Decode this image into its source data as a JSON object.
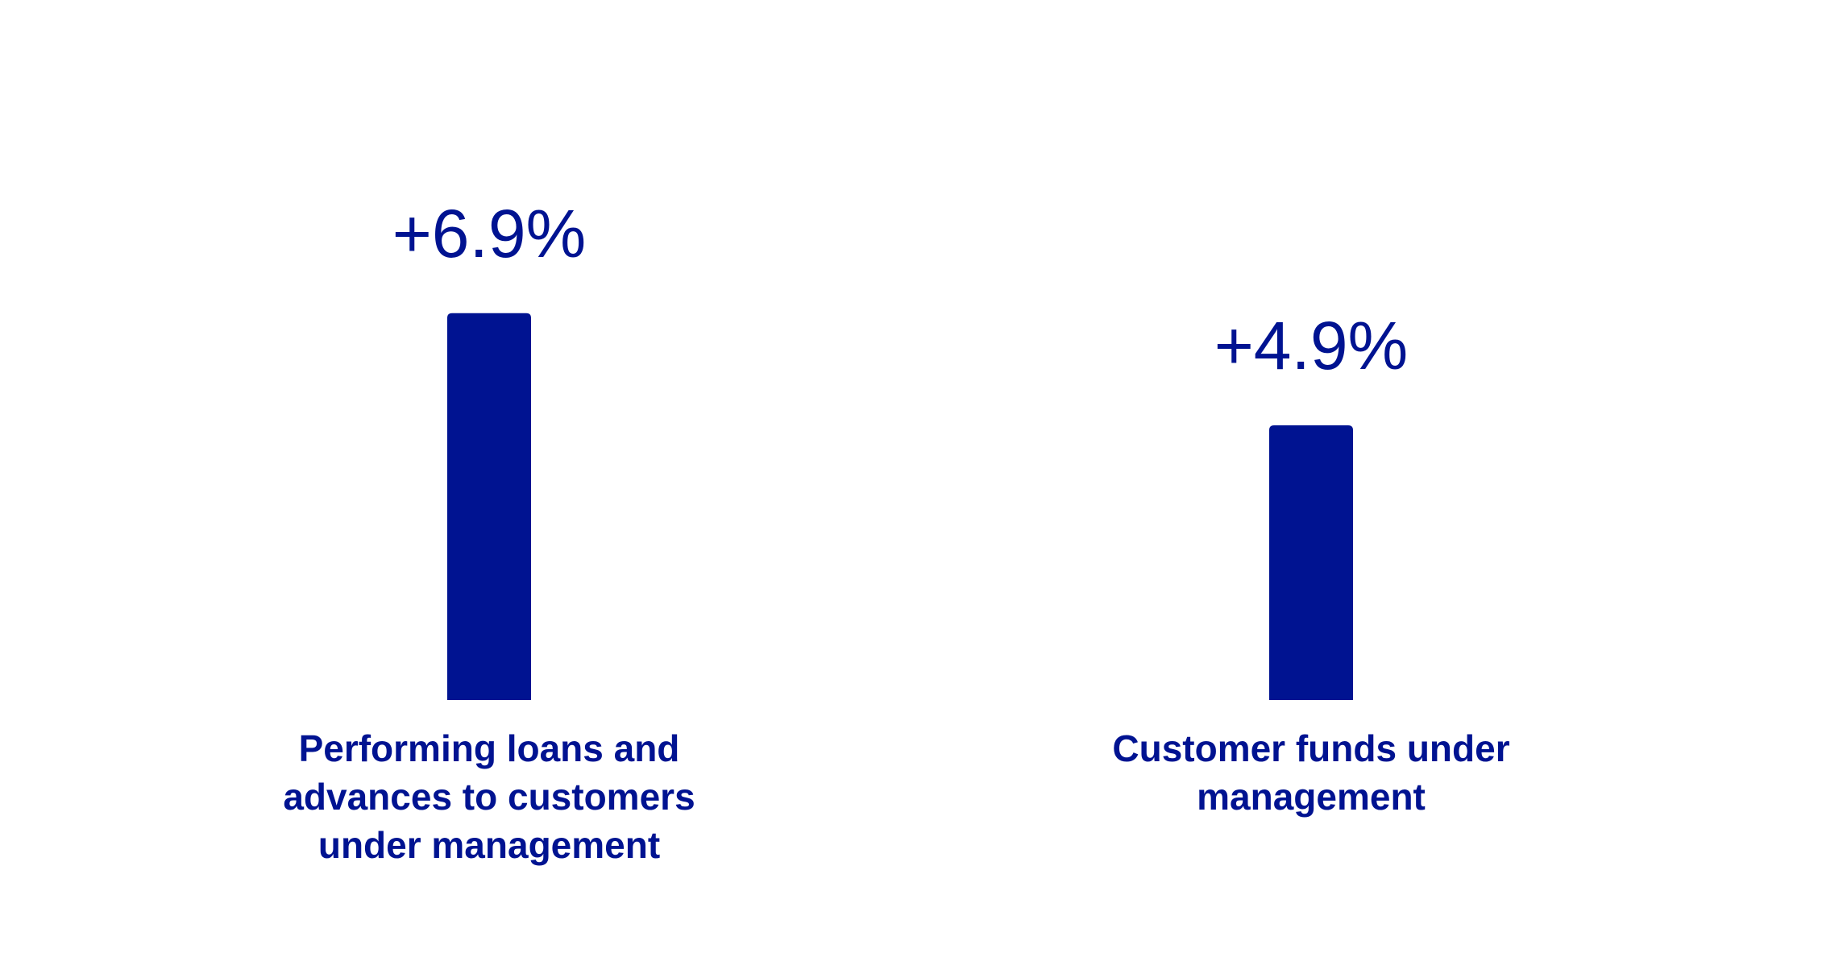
{
  "chart_data": {
    "type": "bar",
    "categories": [
      "Performing loans and advances to customers under management",
      "Customer funds under management"
    ],
    "values": [
      6.9,
      4.9
    ],
    "value_labels": [
      "+6.9%",
      "+4.9%"
    ],
    "color": "#001391"
  }
}
